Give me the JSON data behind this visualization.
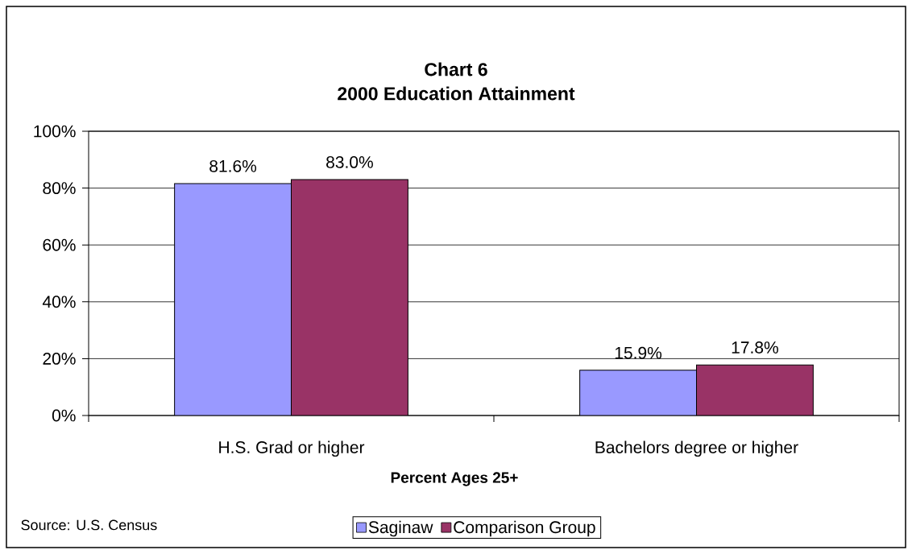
{
  "chart_data": {
    "type": "bar",
    "title": "Chart 6",
    "subtitle": "2000 Education Attainment",
    "xlabel": "Percent Ages 25+",
    "annotations": [
      "Source: U.S. Census"
    ],
    "categories": [
      "H.S. Grad or higher",
      "Bachelors degree or higher"
    ],
    "series": [
      {
        "name": "Saginaw",
        "color": "#9999ff",
        "values": [
          81.6,
          15.9
        ],
        "value_labels": [
          "81.6%",
          "15.9%"
        ]
      },
      {
        "name": "Comparison Group",
        "color": "#993366",
        "values": [
          83.0,
          17.8
        ],
        "value_labels": [
          "83.0%",
          "17.8%"
        ]
      }
    ],
    "ylim": [
      0,
      100
    ],
    "yticks": [
      {
        "value": 0,
        "label": "0%"
      },
      {
        "value": 20,
        "label": "20%"
      },
      {
        "value": 40,
        "label": "40%"
      },
      {
        "value": 60,
        "label": "60%"
      },
      {
        "value": 80,
        "label": "80%"
      },
      {
        "value": 100,
        "label": "100%"
      }
    ],
    "grid": "y",
    "legend": "bottom"
  }
}
